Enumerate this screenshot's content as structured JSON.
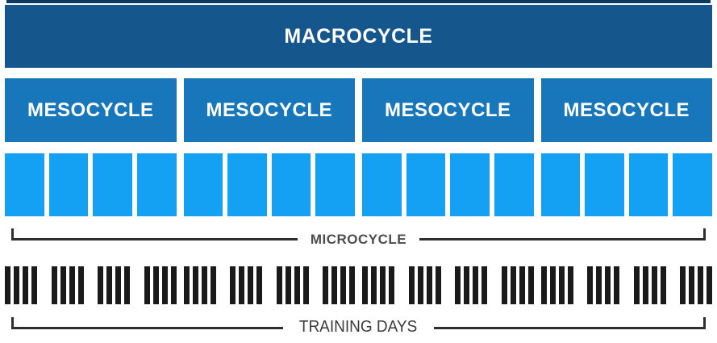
{
  "diagram": {
    "macrocycle": {
      "label": "MACROCYCLE"
    },
    "mesocycles": [
      {
        "label": "MESOCYCLE"
      },
      {
        "label": "MESOCYCLE"
      },
      {
        "label": "MESOCYCLE"
      },
      {
        "label": "MESOCYCLE"
      }
    ],
    "microcycles": {
      "groups": 4,
      "squares_per_group": 4,
      "total_squares": 16,
      "bracket_label": "MICROCYCLE"
    },
    "training_days": {
      "sections": 4,
      "groups_per_section": 4,
      "bars_per_group": 4,
      "total_bars": 64,
      "bracket_label": "TRAINING DAYS"
    },
    "colors": {
      "macrocycle_bar": "#15568c",
      "mesocycle_bar": "#1877ba",
      "microcycle_square": "#14a0f3",
      "training_day_bar": "#1a1a1a",
      "bracket_line": "#2e2e2e",
      "microcycle_label_text": "#4d4d4d",
      "training_days_label_text": "#3c3c3c",
      "top_strip": "#0c3b61",
      "bar_label_text": "#ffffff"
    }
  }
}
